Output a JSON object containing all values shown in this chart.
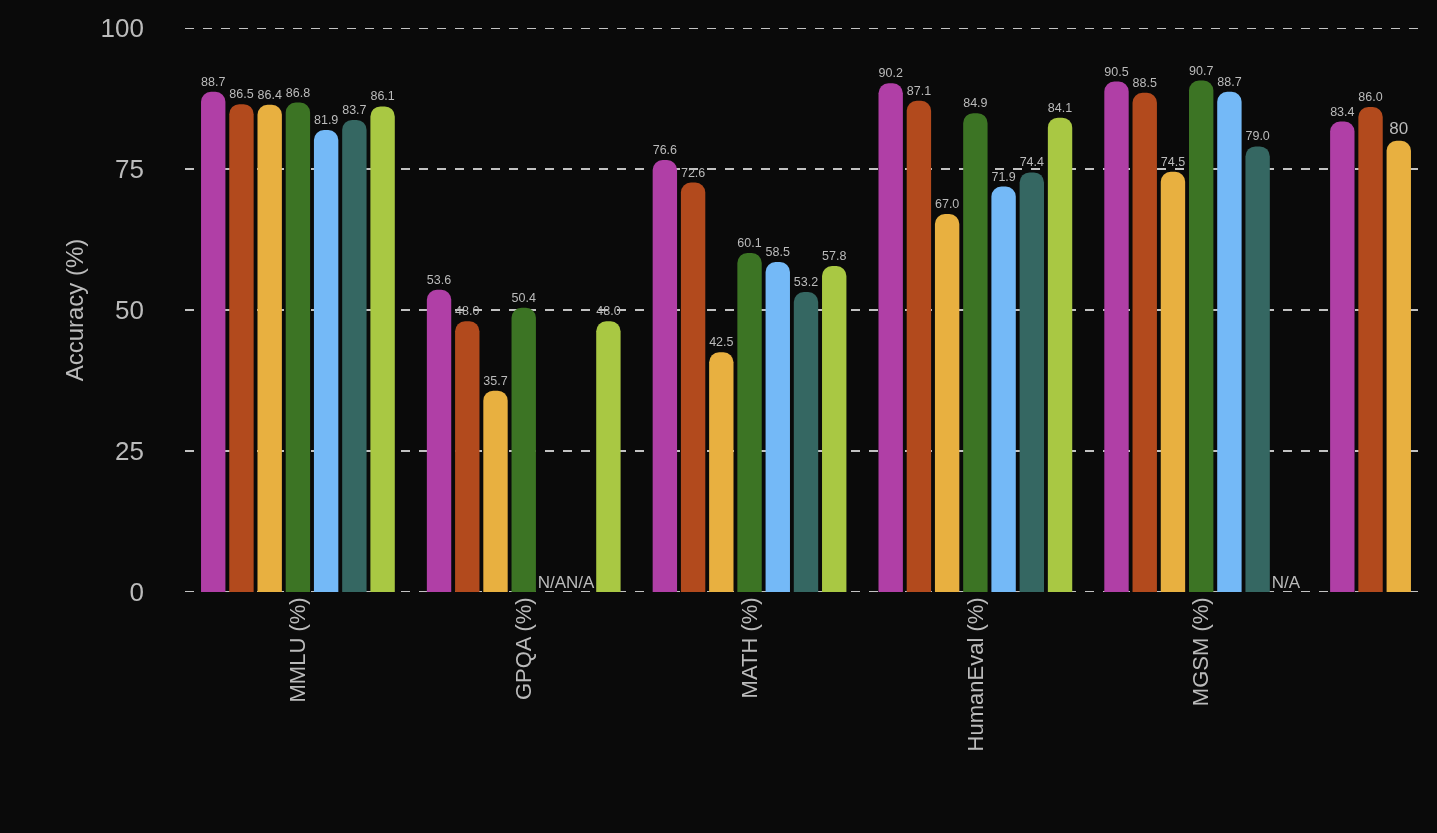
{
  "chart_data": {
    "type": "bar",
    "ylabel": "Accuracy (%)",
    "categories": [
      "MMLU (%)",
      "GPQA (%)",
      "MATH (%)",
      "HumanEval (%)",
      "MGSM (%)",
      null
    ],
    "series": [
      {
        "color": "#b03fa6",
        "values": [
          88.7,
          53.6,
          76.6,
          90.2,
          90.5,
          83.4
        ],
        "value_labels": [
          "88.7",
          "53.6",
          "76.6",
          "90.2",
          "90.5",
          "83.4"
        ]
      },
      {
        "color": "#b24a1d",
        "values": [
          86.5,
          48.0,
          72.6,
          87.1,
          88.5,
          86.0
        ],
        "value_labels": [
          "86.5",
          "48.0",
          "72.6",
          "87.1",
          "88.5",
          "86.0"
        ]
      },
      {
        "color": "#e8b040",
        "values": [
          86.4,
          35.7,
          42.5,
          67.0,
          74.5,
          80
        ],
        "value_labels": [
          "86.4",
          "35.7",
          "42.5",
          "67.0",
          "74.5",
          "80"
        ]
      },
      {
        "color": "#3c7424",
        "values": [
          86.8,
          50.4,
          60.1,
          84.9,
          90.7,
          null
        ],
        "value_labels": [
          "86.8",
          "50.4",
          "60.1",
          "84.9",
          "90.7",
          null
        ]
      },
      {
        "color": "#74b9f7",
        "values": [
          81.9,
          null,
          58.5,
          71.9,
          88.7,
          null
        ],
        "value_labels": [
          "81.9",
          "N/A",
          "58.5",
          "71.9",
          "88.7",
          null
        ]
      },
      {
        "color": "#356762",
        "values": [
          83.7,
          null,
          53.2,
          74.4,
          79.0,
          null
        ],
        "value_labels": [
          "83.7",
          "N/A",
          "53.2",
          "74.4",
          "79.0",
          null
        ]
      },
      {
        "color": "#a9c843",
        "values": [
          86.1,
          48.0,
          57.8,
          84.1,
          null,
          null
        ],
        "value_labels": [
          "86.1",
          "48.0",
          "57.8",
          "84.1",
          "N/A",
          null
        ]
      }
    ],
    "ylim": [
      0,
      100
    ],
    "yticks": [
      0,
      25,
      50,
      75,
      100
    ],
    "grid": "y"
  }
}
